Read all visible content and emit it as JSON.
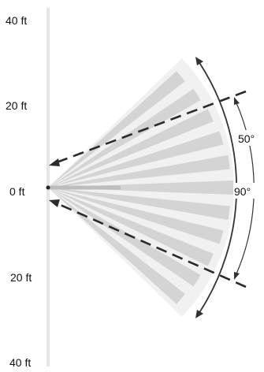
{
  "scale_labels": [
    "40 ft",
    "20 ft",
    "0 ft",
    "20 ft",
    "40 ft"
  ],
  "angles": {
    "inner": "50°",
    "outer": "90°"
  },
  "colors": {
    "beam": "#d4d4d4",
    "beam_gap": "#f1f1f1",
    "axis": "#e6e6e6",
    "dashed": "#2b2b2b",
    "arc": "#333333"
  }
}
